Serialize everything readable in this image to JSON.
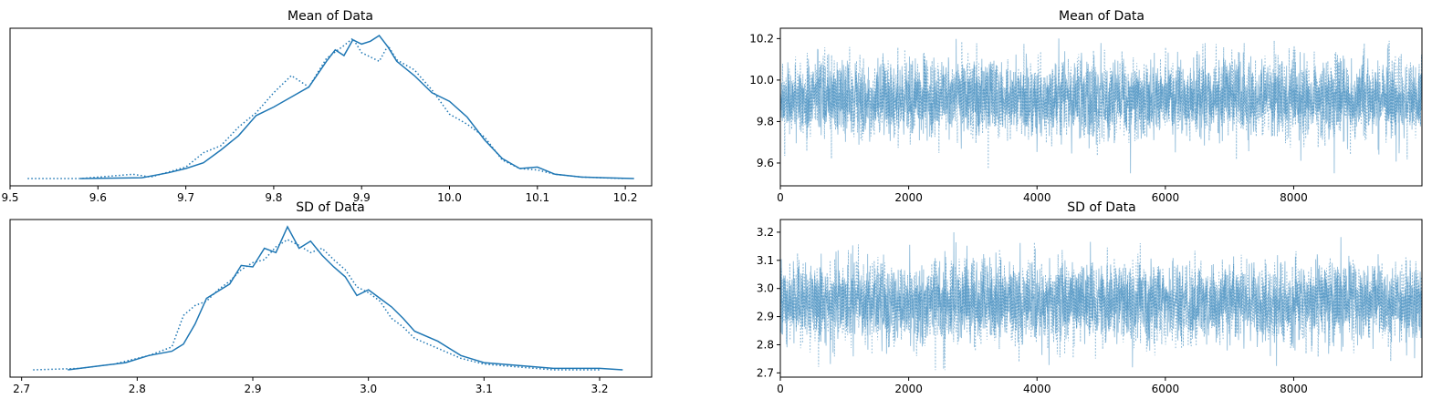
{
  "chart_data": [
    {
      "type": "line",
      "panel": "posterior-density-mean",
      "title": "Mean of Data",
      "xlim": [
        9.5,
        10.23
      ],
      "xticks": [
        "9.5",
        "9.6",
        "9.7",
        "9.8",
        "9.9",
        "10.0",
        "10.1",
        "10.2"
      ],
      "yticks": [],
      "series": [
        {
          "style": "solid",
          "x": [
            9.58,
            9.62,
            9.65,
            9.68,
            9.7,
            9.72,
            9.74,
            9.76,
            9.78,
            9.8,
            9.82,
            9.84,
            9.86,
            9.87,
            9.88,
            9.89,
            9.9,
            9.91,
            9.92,
            9.93,
            9.94,
            9.96,
            9.98,
            10.0,
            10.02,
            10.04,
            10.06,
            10.08,
            10.1,
            10.12,
            10.15,
            10.18,
            10.21
          ],
          "y": [
            0.0,
            0.003,
            0.006,
            0.04,
            0.07,
            0.11,
            0.2,
            0.3,
            0.44,
            0.5,
            0.57,
            0.64,
            0.82,
            0.9,
            0.86,
            0.97,
            0.94,
            0.96,
            1.0,
            0.92,
            0.82,
            0.72,
            0.6,
            0.54,
            0.43,
            0.27,
            0.14,
            0.07,
            0.08,
            0.03,
            0.01,
            0.005,
            0.0
          ]
        },
        {
          "style": "dotted",
          "x": [
            9.52,
            9.58,
            9.62,
            9.64,
            9.66,
            9.7,
            9.72,
            9.74,
            9.76,
            9.78,
            9.8,
            9.82,
            9.84,
            9.86,
            9.88,
            9.89,
            9.9,
            9.92,
            9.93,
            9.94,
            9.96,
            9.98,
            10.0,
            10.02,
            10.04,
            10.06,
            10.08,
            10.1,
            10.12,
            10.15,
            10.2
          ],
          "y": [
            0.0,
            0.0,
            0.02,
            0.03,
            0.01,
            0.08,
            0.18,
            0.23,
            0.36,
            0.46,
            0.6,
            0.72,
            0.64,
            0.84,
            0.93,
            0.98,
            0.88,
            0.82,
            0.93,
            0.83,
            0.76,
            0.62,
            0.45,
            0.38,
            0.29,
            0.13,
            0.07,
            0.06,
            0.03,
            0.01,
            0.0
          ]
        }
      ]
    },
    {
      "type": "line",
      "panel": "trace-mean",
      "title": "Mean of Data",
      "xlim": [
        0,
        9999
      ],
      "ylim": [
        9.49,
        10.25
      ],
      "xticks": [
        "0",
        "2000",
        "4000",
        "6000",
        "8000"
      ],
      "yticks": [
        "9.6",
        "9.8",
        "10.0",
        "10.2"
      ],
      "series": [
        {
          "style": "solid",
          "draws": 10000,
          "center": 9.91,
          "sd": 0.09,
          "min": 9.55,
          "max": 10.21
        },
        {
          "style": "dotted",
          "draws": 10000,
          "center": 9.91,
          "sd": 0.09,
          "min": 9.52,
          "max": 10.19
        }
      ]
    },
    {
      "type": "line",
      "panel": "posterior-density-sd",
      "title": "SD of Data",
      "xlim": [
        2.69,
        3.245
      ],
      "xticks": [
        "2.7",
        "2.8",
        "2.9",
        "3.0",
        "3.1",
        "3.2"
      ],
      "yticks": [],
      "series": [
        {
          "style": "solid",
          "x": [
            2.74,
            2.77,
            2.79,
            2.81,
            2.83,
            2.84,
            2.85,
            2.86,
            2.87,
            2.88,
            2.89,
            2.9,
            2.91,
            2.92,
            2.93,
            2.94,
            2.95,
            2.96,
            2.97,
            2.98,
            2.99,
            3.0,
            3.01,
            3.02,
            3.03,
            3.04,
            3.06,
            3.08,
            3.1,
            3.13,
            3.16,
            3.2,
            3.22
          ],
          "y": [
            0.0,
            0.03,
            0.05,
            0.1,
            0.13,
            0.18,
            0.32,
            0.5,
            0.55,
            0.6,
            0.73,
            0.72,
            0.85,
            0.82,
            1.0,
            0.85,
            0.9,
            0.8,
            0.72,
            0.65,
            0.52,
            0.56,
            0.5,
            0.44,
            0.36,
            0.27,
            0.2,
            0.1,
            0.05,
            0.03,
            0.01,
            0.01,
            0.0
          ]
        },
        {
          "style": "dotted",
          "x": [
            2.71,
            2.75,
            2.78,
            2.81,
            2.83,
            2.84,
            2.85,
            2.86,
            2.87,
            2.88,
            2.89,
            2.9,
            2.91,
            2.92,
            2.93,
            2.94,
            2.95,
            2.96,
            2.97,
            2.98,
            2.99,
            3.0,
            3.01,
            3.02,
            3.03,
            3.04,
            3.06,
            3.08,
            3.1,
            3.13,
            3.16,
            3.2
          ],
          "y": [
            0.0,
            0.01,
            0.04,
            0.1,
            0.16,
            0.38,
            0.45,
            0.48,
            0.56,
            0.62,
            0.7,
            0.75,
            0.77,
            0.86,
            0.91,
            0.87,
            0.82,
            0.85,
            0.77,
            0.7,
            0.58,
            0.54,
            0.48,
            0.36,
            0.3,
            0.22,
            0.15,
            0.08,
            0.04,
            0.02,
            0.0,
            0.0
          ]
        }
      ]
    },
    {
      "type": "line",
      "panel": "trace-sd",
      "title": "SD of Data",
      "xlim": [
        0,
        9999
      ],
      "ylim": [
        2.685,
        3.245
      ],
      "xticks": [
        "0",
        "2000",
        "4000",
        "6000",
        "8000"
      ],
      "yticks": [
        "2.7",
        "2.8",
        "2.9",
        "3.0",
        "3.1",
        "3.2"
      ],
      "series": [
        {
          "style": "solid",
          "draws": 10000,
          "center": 2.95,
          "sd": 0.07,
          "min": 2.72,
          "max": 3.22
        },
        {
          "style": "dotted",
          "draws": 10000,
          "center": 2.95,
          "sd": 0.07,
          "min": 2.71,
          "max": 3.19
        }
      ]
    }
  ]
}
